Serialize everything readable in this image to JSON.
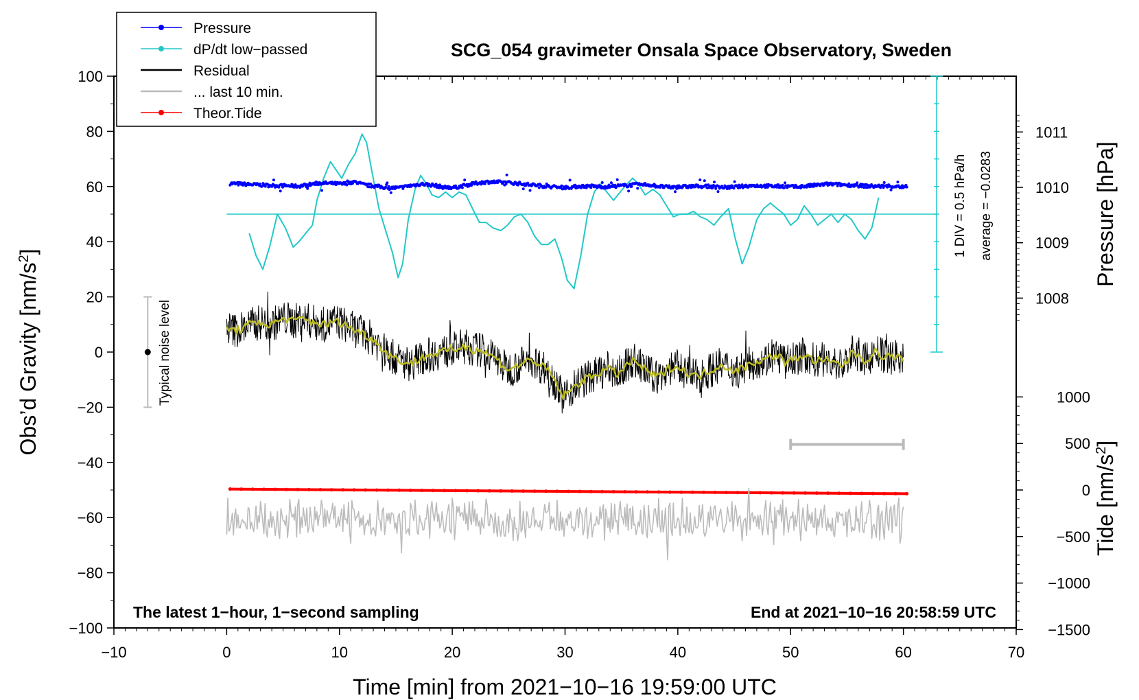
{
  "chart_data": {
    "type": "line",
    "title": "SCG_054 gravimeter Onsala Space Observatory, Sweden",
    "xlabel": "Time [min] from 2021−10−16 19:59:00 UTC",
    "ylabel_left": "Obs’d Gravity [nm/s",
    "ylabel_left_sup": "2",
    "ylabel_left_close": "]",
    "ylabel_right_pressure": "Pressure [hPa]",
    "ylabel_right_tide": "Tide [nm/s",
    "ylabel_right_tide_sup": "2",
    "ylabel_right_tide_close": "]",
    "xlim": [
      -10,
      70
    ],
    "ylim": [
      -100,
      100
    ],
    "x_ticks": [
      "−10",
      "0",
      "10",
      "20",
      "30",
      "40",
      "50",
      "60",
      "70"
    ],
    "y_ticks": [
      "100",
      "80",
      "60",
      "40",
      "20",
      "0",
      "−20",
      "−40",
      "−60",
      "−80",
      "−100"
    ],
    "pressure_ticks": [
      "1011",
      "1010",
      "1009",
      "1008"
    ],
    "tide_ticks": [
      "1000",
      "500",
      "0",
      "−500",
      "−1000",
      "−1500"
    ],
    "legend": [
      {
        "label": "Pressure",
        "color": "#0000ff",
        "marker": true
      },
      {
        "label": "dP/dt low−passed",
        "color": "#22c8c8",
        "marker": true
      },
      {
        "label": "Residual",
        "color": "#000000",
        "marker": false
      },
      {
        "label": "... last 10 min.",
        "color": "#bbbbbb",
        "marker": false
      },
      {
        "label": "Theor.Tide",
        "color": "#ff0000",
        "marker": true
      }
    ],
    "noise_label": "Typical noise level",
    "noise_range": [
      -20,
      20
    ],
    "dpdt_scale_label": "1 DIV = 0.5 hPa/h",
    "dpdt_average_label": "average = −0.0283",
    "footer_left": "The latest 1−hour, 1−second sampling",
    "footer_right": "End at 2021−10−16 20:58:59 UTC",
    "last10_bar": [
      50,
      60
    ],
    "dpdt_reference_level": 50,
    "series": [
      {
        "name": "Pressure",
        "color": "#0000ff",
        "x_range": [
          0.3,
          60.3
        ],
        "values_hpa": [
          1010.07,
          1010.06,
          1010.05,
          1010.04,
          1010.03,
          1010.03,
          1010.02,
          1010.05,
          1010.08,
          1010.07,
          1010.06,
          1010.1,
          1010.04,
          1010.02,
          1009.99,
          1009.99,
          1010.03,
          1010.06,
          1010.04,
          1010.0,
          1010.0,
          1010.04,
          1010.08,
          1010.1,
          1010.09,
          1010.08,
          1010.06,
          1010.04,
          1010.02,
          1010.0,
          1010.0,
          1010.02,
          1010.02,
          1010.01,
          1010.02,
          1010.03,
          1010.05,
          1010.05,
          1010.02,
          1010.0,
          1010.01,
          1010.02,
          1010.02,
          1010.01,
          1010.0,
          1010.01,
          1010.03,
          1010.03,
          1010.02,
          1010.02,
          1010.01,
          1010.02,
          1010.04,
          1010.06,
          1010.05,
          1010.04,
          1010.03,
          1010.02,
          1010.02,
          1010.02,
          1010.0
        ]
      },
      {
        "name": "dP/dt low-passed",
        "color": "#22c8c8",
        "x": [
          2.0,
          2.6,
          3.2,
          3.8,
          4.5,
          5.2,
          5.9,
          6.4,
          7.0,
          7.6,
          8.0,
          8.6,
          9.2,
          9.7,
          10.2,
          10.8,
          11.4,
          12.0,
          12.4,
          12.9,
          13.5,
          14.1,
          14.7,
          15.2,
          15.6,
          16.1,
          16.7,
          17.2,
          17.7,
          18.2,
          18.8,
          19.4,
          20.0,
          20.6,
          21.2,
          21.8,
          22.4,
          23.0,
          23.6,
          24.3,
          24.9,
          25.5,
          26.1,
          26.7,
          27.3,
          27.9,
          28.5,
          29.1,
          29.7,
          30.2,
          30.8,
          31.4,
          32.0,
          32.6,
          33.1,
          33.7,
          34.3,
          34.9,
          35.5,
          36.0,
          36.5,
          37.1,
          37.8,
          38.4,
          39.0,
          39.6,
          40.2,
          40.8,
          41.4,
          42.0,
          42.6,
          43.2,
          43.8,
          44.5,
          45.1,
          45.7,
          46.3,
          47.0,
          47.6,
          48.2,
          48.8,
          49.4,
          50.0,
          50.6,
          51.2,
          51.8,
          52.4,
          53.0,
          53.6,
          54.2,
          54.8,
          55.4,
          56.0,
          56.6,
          57.2,
          57.8
        ],
        "values": [
          43,
          35,
          30,
          38,
          50,
          45,
          38,
          40,
          43,
          46,
          55,
          63,
          69,
          66,
          63,
          68,
          72,
          79,
          76,
          65,
          52,
          44,
          36,
          27,
          32,
          48,
          59,
          64,
          61,
          57,
          56,
          58,
          56,
          58,
          57,
          52,
          47,
          47,
          45,
          44,
          46,
          49,
          50,
          47,
          42,
          39,
          39,
          41,
          34,
          26,
          23,
          35,
          50,
          58,
          61,
          58,
          55,
          58,
          61,
          63,
          61,
          57,
          59,
          57,
          53,
          49,
          50,
          50,
          51,
          49,
          48,
          46,
          49,
          52,
          41,
          32,
          38,
          48,
          52,
          54,
          52,
          50,
          46,
          48,
          53,
          50,
          46,
          48,
          50,
          47,
          50,
          48,
          44,
          41,
          45,
          56
        ]
      },
      {
        "name": "Residual (smoothed)",
        "color": "#bcbc22",
        "x_range": [
          0,
          60
        ],
        "values": [
          9,
          8,
          8,
          9,
          10,
          10,
          11,
          10,
          10,
          11,
          12,
          12,
          11,
          12,
          12,
          11,
          11,
          10,
          10,
          11,
          11,
          10,
          9,
          8,
          7,
          6,
          5,
          3,
          1,
          -1,
          -2,
          -3,
          -4,
          -4,
          -3,
          -2,
          -1,
          -1,
          0,
          0,
          1,
          1,
          2,
          2,
          1,
          1,
          0,
          -1,
          -2,
          -4,
          -6,
          -6,
          -5,
          -4,
          -3,
          -3,
          -5,
          -6,
          -8,
          -12,
          -16,
          -15,
          -13,
          -11,
          -10,
          -9,
          -8,
          -7,
          -6,
          -7,
          -8,
          -6,
          -4,
          -3,
          -5,
          -7,
          -8,
          -9,
          -8,
          -6,
          -5,
          -6,
          -7,
          -8,
          -9,
          -8,
          -7,
          -6,
          -5,
          -5,
          -6,
          -7,
          -6,
          -5,
          -4,
          -3,
          -3,
          -2,
          -1,
          -2,
          -4,
          -3,
          -2,
          -1,
          -2,
          -3,
          -3,
          -3,
          -4,
          -4,
          -5,
          -3,
          0,
          -1,
          -3,
          -2,
          0,
          -1,
          -2,
          -1,
          -2,
          -3
        ]
      },
      {
        "name": "Theor.Tide",
        "color": "#ff0000",
        "x_range": [
          0.3,
          60.3
        ],
        "tide_range": [
          10,
          -40
        ]
      },
      {
        "name": "... last 10 min.",
        "color": "#bbbbbb",
        "x_range": [
          0,
          60
        ],
        "center": -61
      }
    ]
  }
}
